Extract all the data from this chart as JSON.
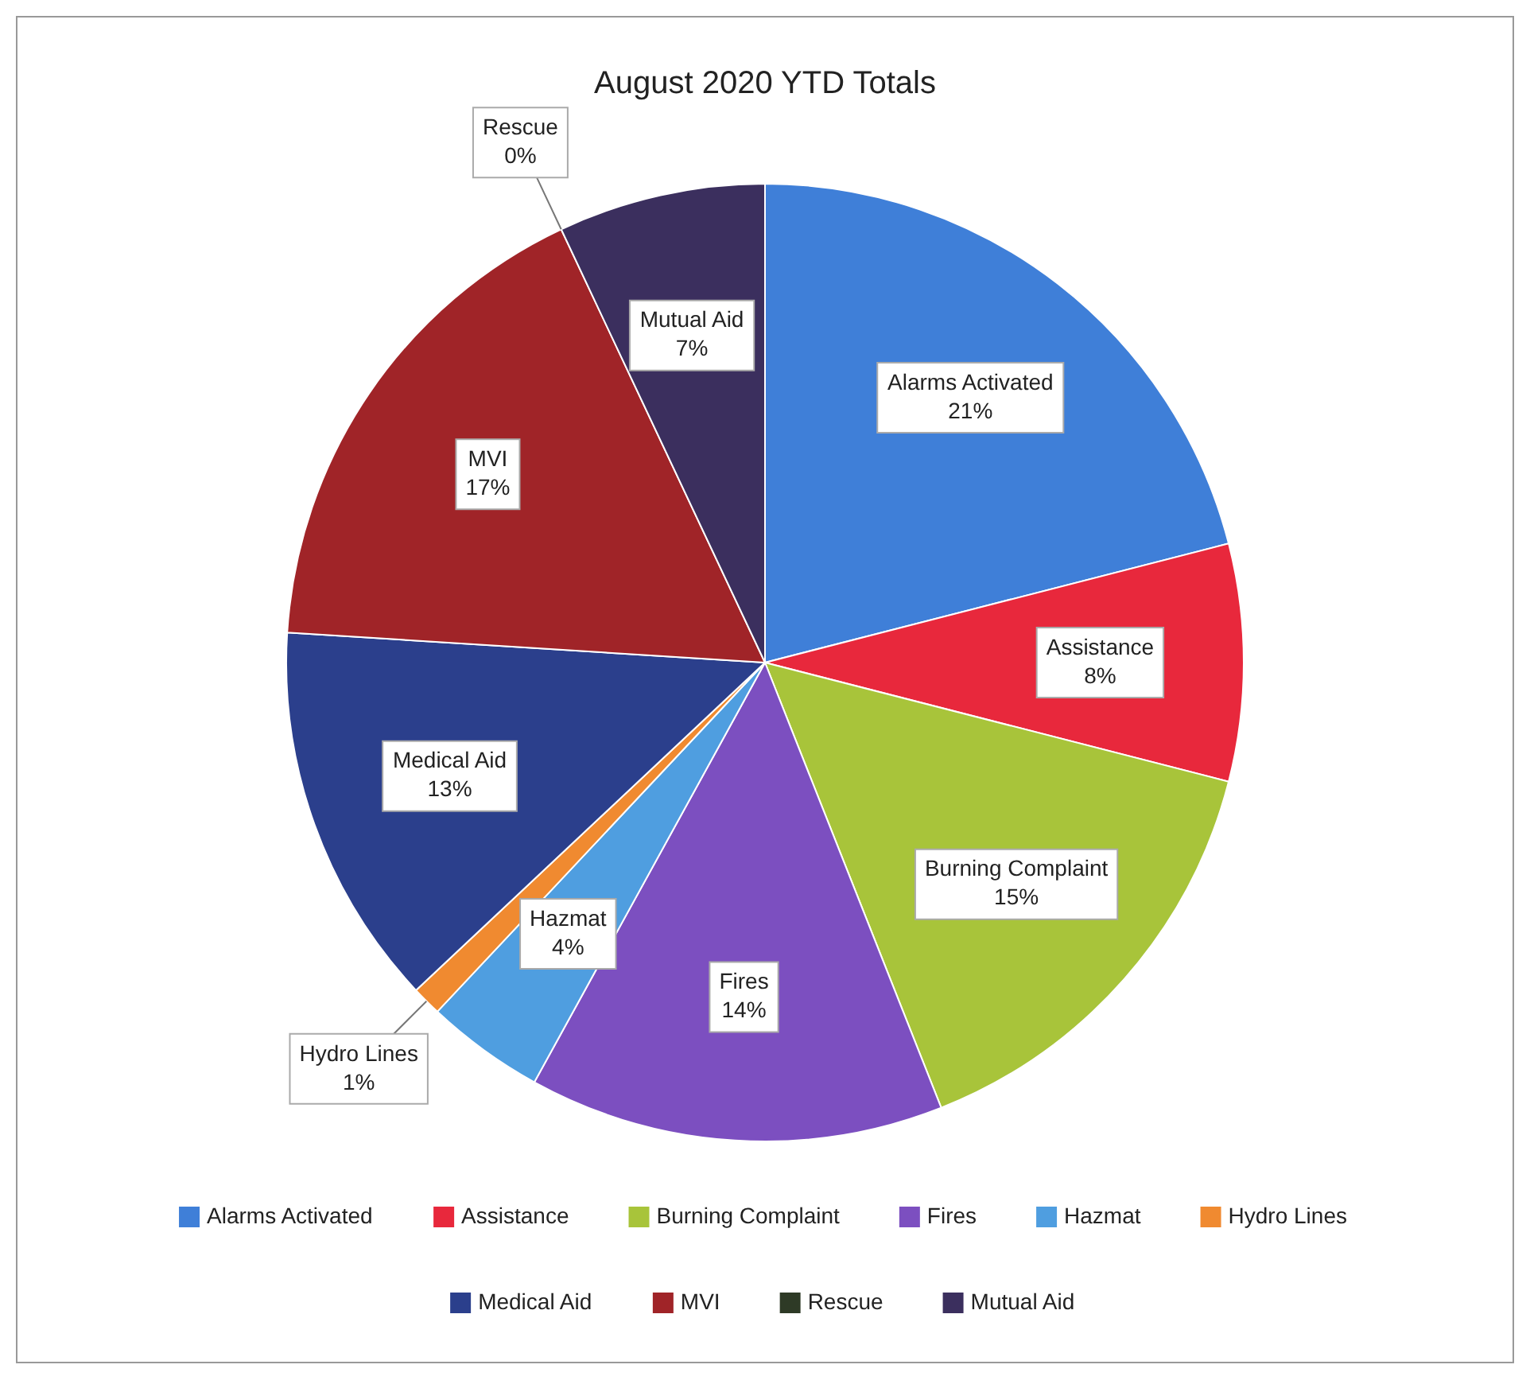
{
  "chart_data": {
    "type": "pie",
    "title": "August 2020 YTD Totals",
    "categories": [
      "Alarms Activated",
      "Assistance",
      "Burning Complaint",
      "Fires",
      "Hazmat",
      "Hydro Lines",
      "Medical Aid",
      "MVI",
      "Rescue",
      "Mutual Aid"
    ],
    "values": [
      21,
      8,
      15,
      14,
      4,
      1,
      13,
      17,
      0,
      7
    ],
    "value_labels": [
      "21%",
      "8%",
      "15%",
      "14%",
      "4%",
      "1%",
      "13%",
      "17%",
      "0%",
      "7%"
    ],
    "colors": [
      "#3f7fd8",
      "#e8283c",
      "#a8c43a",
      "#7c4fc0",
      "#4f9ee0",
      "#f08a30",
      "#2b3f8c",
      "#a02428",
      "#2e3a26",
      "#3b2f5e"
    ],
    "legend": "bottom"
  }
}
